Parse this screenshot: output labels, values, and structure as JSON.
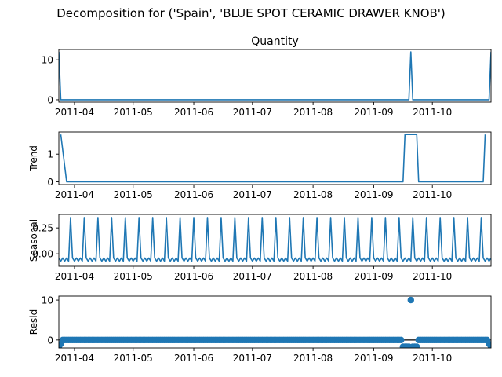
{
  "figure": {
    "suptitle": "Decomposition for ('Spain', 'BLUE SPOT CERAMIC DRAWER KNOB')",
    "line_color": "#1f77b4",
    "x_start": "2011-03-24",
    "x_end": "2011-10-31",
    "x_tick_labels": [
      "2011-04",
      "2011-05",
      "2011-06",
      "2011-07",
      "2011-08",
      "2011-09",
      "2011-10"
    ],
    "x_tick_dates": [
      "2011-04-01",
      "2011-05-01",
      "2011-06-01",
      "2011-07-01",
      "2011-08-01",
      "2011-09-01",
      "2011-10-01"
    ]
  },
  "chart_data": [
    {
      "type": "line",
      "title": "Quantity",
      "ylabel": "",
      "ylim": [
        -0.6,
        12.6
      ],
      "yticks": [
        0,
        10
      ],
      "x": [
        "2011-03-24",
        "2011-03-25",
        "2011-09-19",
        "2011-09-20",
        "2011-09-21",
        "2011-10-30",
        "2011-10-31"
      ],
      "values": [
        12,
        0,
        0,
        12,
        0,
        0,
        12
      ]
    },
    {
      "type": "line",
      "title": "",
      "ylabel": "Trend",
      "ylim": [
        -0.1,
        1.8
      ],
      "yticks": [
        0,
        1
      ],
      "x": [
        "2011-03-25",
        "2011-03-28",
        "2011-09-16",
        "2011-09-17",
        "2011-09-23",
        "2011-09-24",
        "2011-10-27",
        "2011-10-28"
      ],
      "values": [
        1.71,
        0,
        0,
        1.71,
        1.71,
        0,
        0,
        1.71
      ]
    },
    {
      "type": "line",
      "title": "",
      "ylabel": "Seasonal",
      "ylim": [
        -0.12,
        0.38
      ],
      "yticks": [
        0,
        0.25
      ],
      "ytick_labels": [
        "0.00",
        "0.25"
      ],
      "period_days": 7,
      "pattern": [
        -0.04,
        -0.07,
        -0.04,
        -0.07,
        -0.04,
        -0.07,
        0.35
      ]
    },
    {
      "type": "scatter",
      "title": "",
      "ylabel": "Resid",
      "ylim": [
        -2.0,
        11.0
      ],
      "yticks": [
        0,
        10
      ],
      "baseline": 0,
      "default_value": 0,
      "points": [
        {
          "x": "2011-03-24",
          "y": -1.7
        },
        {
          "x": "2011-03-25",
          "y": -1.0
        },
        {
          "x": "2011-09-16",
          "y": -1.7
        },
        {
          "x": "2011-09-17",
          "y": -1.7
        },
        {
          "x": "2011-09-18",
          "y": -1.7
        },
        {
          "x": "2011-09-19",
          "y": -1.7
        },
        {
          "x": "2011-09-20",
          "y": 10.0
        },
        {
          "x": "2011-09-21",
          "y": -1.7
        },
        {
          "x": "2011-09-22",
          "y": -1.7
        },
        {
          "x": "2011-09-23",
          "y": -1.7
        },
        {
          "x": "2011-10-30",
          "y": -1.0
        },
        {
          "x": "2011-10-31",
          "y": -1.7
        }
      ]
    }
  ]
}
